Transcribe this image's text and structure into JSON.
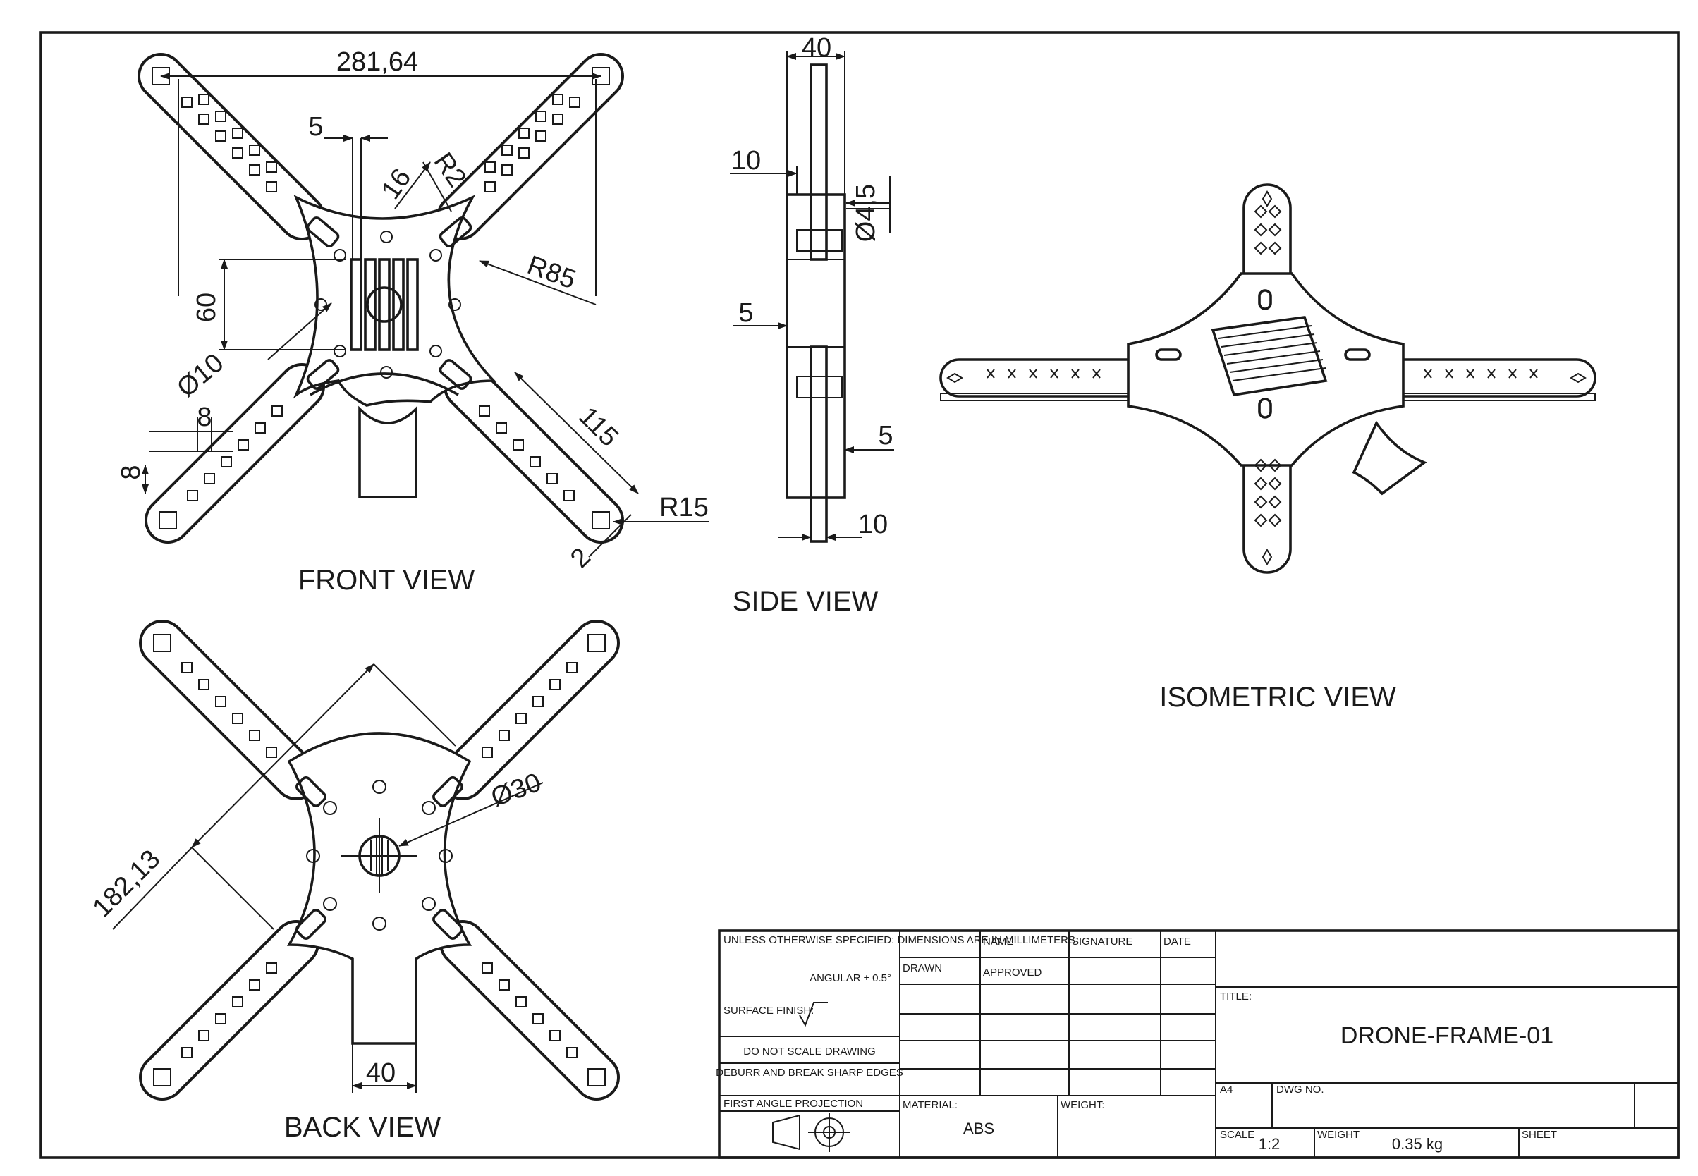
{
  "views": {
    "front": "FRONT VIEW",
    "side": "SIDE VIEW",
    "back": "BACK VIEW",
    "isometric": "ISOMETRIC VIEW"
  },
  "front_dims": {
    "overall": "281,64",
    "slot_gap": "5",
    "r2": "R2",
    "d16": "16",
    "r85": "R85",
    "h60": "60",
    "d10": "Ø10",
    "arm_len": "115",
    "r15": "R15",
    "d8a": "8",
    "d8b": "8",
    "d2": "2"
  },
  "side_dims": {
    "top": "40",
    "t10a": "10",
    "d45": "Ø4,5",
    "t5a": "5",
    "t5b": "5",
    "t10b": "10"
  },
  "back_dims": {
    "span": "182,13",
    "d30": "Ø30",
    "w40": "40"
  },
  "title_block": {
    "general_note": "UNLESS OTHERWISE SPECIFIED: DIMENSIONS ARE IN MILLIMETERS",
    "tolerance_note": "ANGULAR ± 0.5°",
    "surface_finish": "SURFACE FINISH:",
    "no_scale": "DO NOT SCALE DRAWING",
    "deburr": "DEBURR AND BREAK SHARP EDGES",
    "projection": "FIRST ANGLE PROJECTION",
    "col_name": "NAME",
    "col_signature": "SIGNATURE",
    "col_date": "DATE",
    "row_drawn": "DRAWN",
    "row_approved": "APPROVED",
    "material_label": "MATERIAL:",
    "material": "ABS",
    "weight_label_top": "WEIGHT:",
    "title_label": "TITLE:",
    "title": "DRONE-FRAME-01",
    "dwg_label": "DWG NO.",
    "size_label": "A4",
    "scale_label": "SCALE",
    "scale": "1:2",
    "weight_label": "WEIGHT",
    "weight": "0.35 kg",
    "sheet_label": "SHEET"
  }
}
